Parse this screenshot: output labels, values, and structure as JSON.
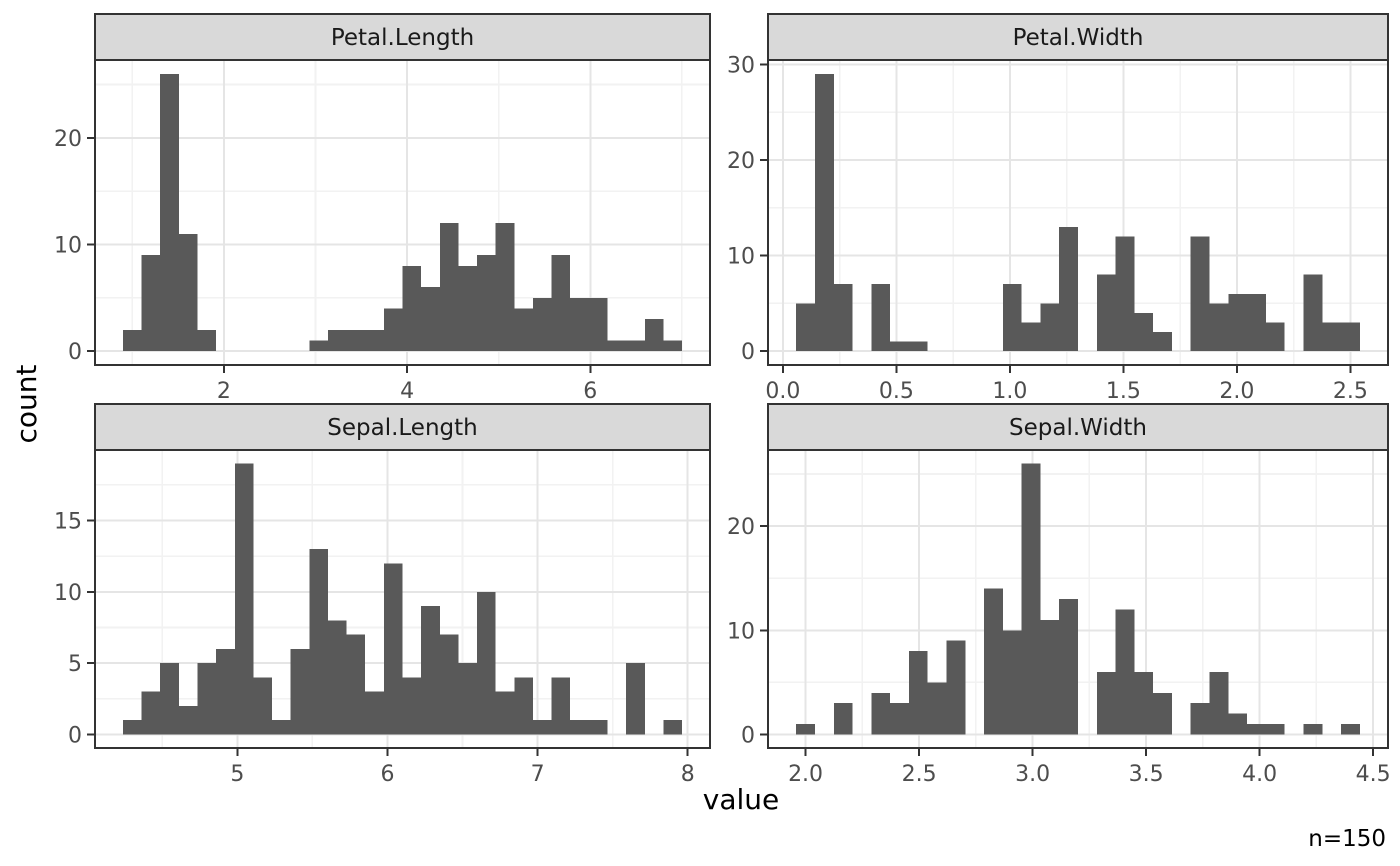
{
  "x_axis_title": "value",
  "y_axis_title": "count",
  "caption": "n=150",
  "sample_size": 150,
  "colors": {
    "bar_fill": "#595959",
    "strip_bg": "#d9d9d9",
    "strip_border": "#333333",
    "strip_text": "#1a1a1a",
    "panel_bg": "#ffffff",
    "panel_border": "#333333",
    "grid_major": "#e5e5e5",
    "grid_minor": "#f2f2f2",
    "axis_text": "#4d4d4d",
    "tick_mark": "#333333",
    "title_text": "#000000",
    "background": "#ffffff"
  },
  "chart_data": [
    {
      "type": "bar",
      "subtype": "histogram",
      "title": "Petal.Length",
      "bin_start": 0.898276,
      "bin_width": 0.203448,
      "counts": [
        2,
        9,
        26,
        11,
        2,
        0,
        0,
        0,
        0,
        0,
        1,
        2,
        2,
        2,
        4,
        8,
        6,
        12,
        8,
        9,
        12,
        4,
        5,
        9,
        5,
        5,
        1,
        1,
        3,
        1
      ],
      "x_domain": [
        0.5931,
        7.3069
      ],
      "y_domain": [
        -1.3,
        27.3
      ],
      "x_ticks": {
        "values": [
          2,
          4,
          6
        ],
        "labels": [
          "2",
          "4",
          "6"
        ]
      },
      "x_minor": [
        1,
        3,
        5,
        7
      ],
      "y_ticks": {
        "values": [
          0,
          10,
          20
        ],
        "labels": [
          "0",
          "10",
          "20"
        ]
      },
      "y_minor": [
        5,
        15,
        25
      ],
      "grid": true,
      "legend": "none"
    },
    {
      "type": "bar",
      "subtype": "histogram",
      "title": "Petal.Width",
      "bin_start": 0.058621,
      "bin_width": 0.082759,
      "counts": [
        5,
        29,
        7,
        0,
        7,
        1,
        1,
        0,
        0,
        0,
        0,
        7,
        3,
        5,
        13,
        0,
        8,
        12,
        4,
        2,
        0,
        12,
        5,
        6,
        6,
        3,
        0,
        8,
        3,
        3
      ],
      "x_domain": [
        -0.0655,
        2.6655
      ],
      "y_domain": [
        -1.45,
        30.45
      ],
      "x_ticks": {
        "values": [
          0,
          0.5,
          1,
          1.5,
          2,
          2.5
        ],
        "labels": [
          "0.0",
          "0.5",
          "1.0",
          "1.5",
          "2.0",
          "2.5"
        ]
      },
      "x_minor": [
        0.25,
        0.75,
        1.25,
        1.75,
        2.25
      ],
      "y_ticks": {
        "values": [
          0,
          10,
          20,
          30
        ],
        "labels": [
          "0",
          "10",
          "20",
          "30"
        ]
      },
      "y_minor": [
        5,
        15,
        25
      ],
      "grid": true,
      "legend": "none"
    },
    {
      "type": "bar",
      "subtype": "histogram",
      "title": "Sepal.Length",
      "bin_start": 4.237931,
      "bin_width": 0.124138,
      "counts": [
        1,
        3,
        5,
        2,
        5,
        6,
        19,
        4,
        1,
        6,
        13,
        8,
        7,
        3,
        12,
        4,
        9,
        7,
        5,
        10,
        3,
        4,
        1,
        4,
        1,
        1,
        0,
        5,
        0,
        1
      ],
      "x_domain": [
        4.0517,
        8.1483
      ],
      "y_domain": [
        -0.95,
        19.95
      ],
      "x_ticks": {
        "values": [
          5,
          6,
          7,
          8
        ],
        "labels": [
          "5",
          "6",
          "7",
          "8"
        ]
      },
      "x_minor": [
        4.5,
        5.5,
        6.5,
        7.5
      ],
      "y_ticks": {
        "values": [
          0,
          5,
          10,
          15
        ],
        "labels": [
          "0",
          "5",
          "10",
          "15"
        ]
      },
      "y_minor": [
        2.5,
        7.5,
        12.5,
        17.5
      ],
      "grid": true,
      "legend": "none"
    },
    {
      "type": "bar",
      "subtype": "histogram",
      "title": "Sepal.Width",
      "bin_start": 1.958621,
      "bin_width": 0.082759,
      "counts": [
        1,
        0,
        3,
        0,
        4,
        3,
        8,
        5,
        9,
        0,
        14,
        10,
        26,
        11,
        13,
        0,
        6,
        12,
        6,
        4,
        0,
        3,
        6,
        2,
        1,
        1,
        0,
        1,
        0,
        1
      ],
      "x_domain": [
        1.8345,
        4.5655
      ],
      "y_domain": [
        -1.3,
        27.3
      ],
      "x_ticks": {
        "values": [
          2,
          2.5,
          3,
          3.5,
          4,
          4.5
        ],
        "labels": [
          "2.0",
          "2.5",
          "3.0",
          "3.5",
          "4.0",
          "4.5"
        ]
      },
      "x_minor": [
        2.25,
        2.75,
        3.25,
        3.75,
        4.25
      ],
      "y_ticks": {
        "values": [
          0,
          10,
          20
        ],
        "labels": [
          "0",
          "10",
          "20"
        ]
      },
      "y_minor": [
        5,
        15,
        25
      ],
      "grid": true,
      "legend": "none"
    }
  ]
}
